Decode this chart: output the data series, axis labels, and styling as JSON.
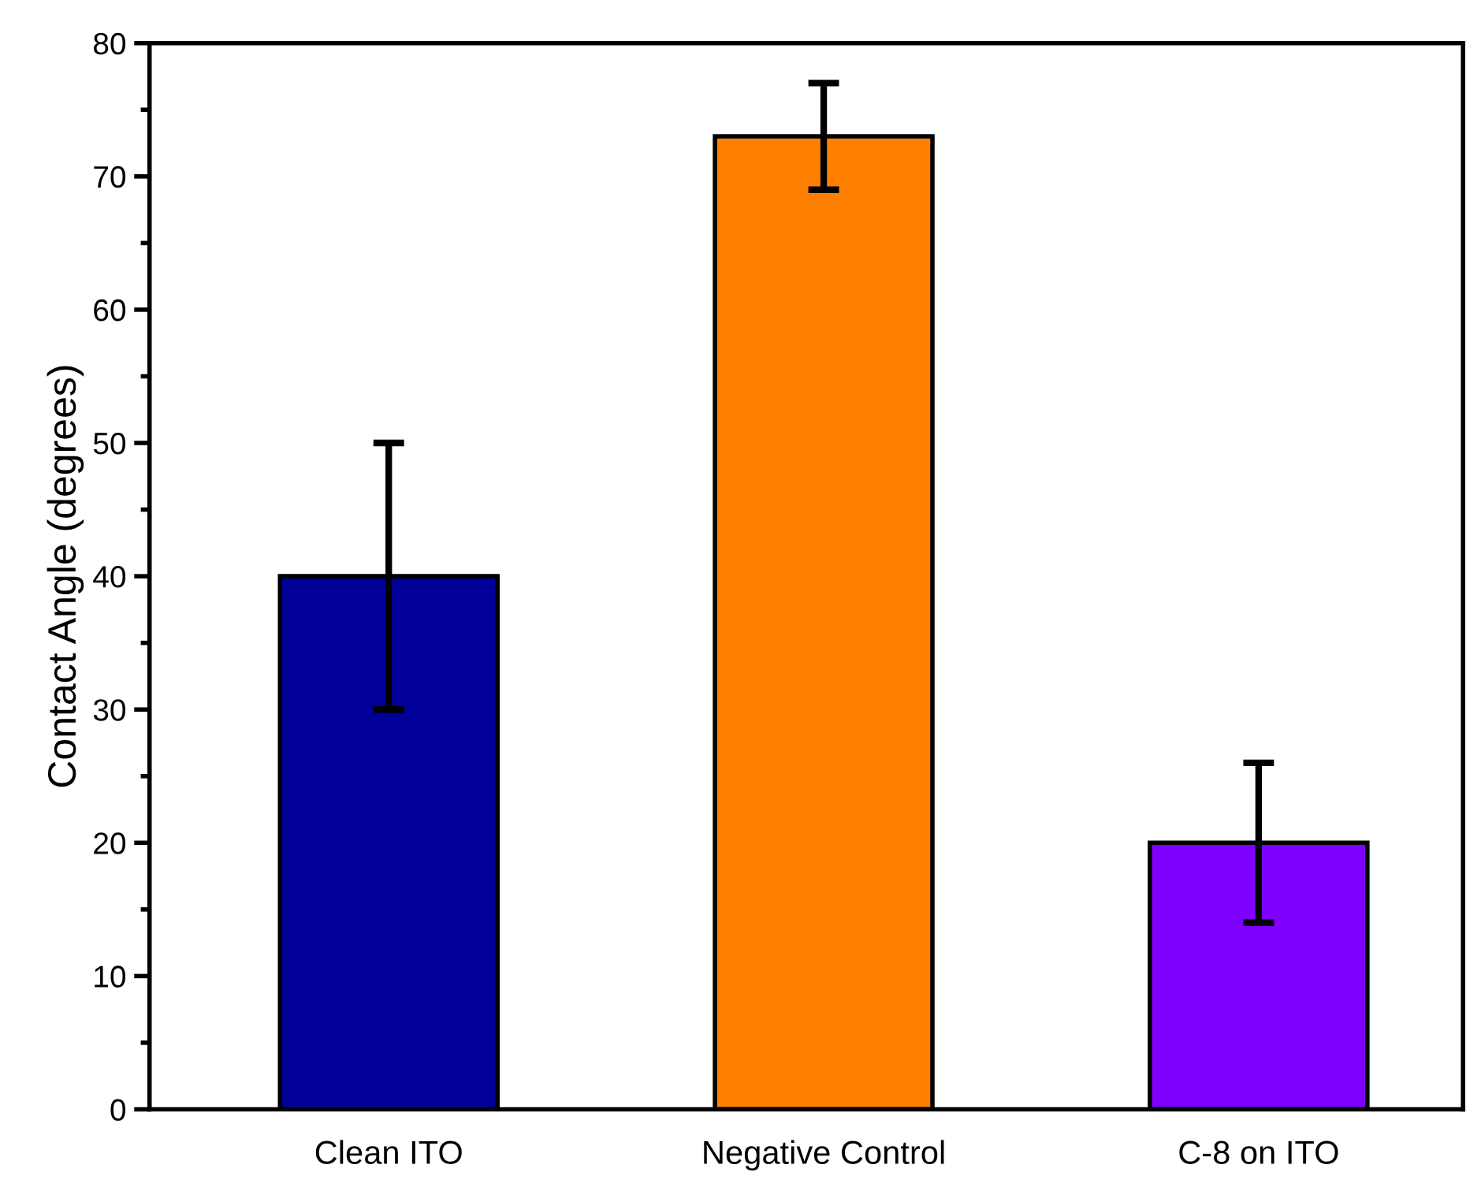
{
  "chart_data": {
    "type": "bar",
    "ylabel": "Contact Angle (degrees)",
    "categories": [
      "Clean ITO",
      "Negative Control",
      "C-8 on ITO"
    ],
    "values": [
      40,
      73,
      20
    ],
    "errors": [
      10,
      4,
      6
    ],
    "colors": [
      "#000099",
      "#ff8000",
      "#8000ff"
    ],
    "ylim": [
      0,
      80
    ],
    "yticks": [
      0,
      10,
      20,
      30,
      40,
      50,
      60,
      70,
      80
    ],
    "grid": false,
    "legend": false
  }
}
